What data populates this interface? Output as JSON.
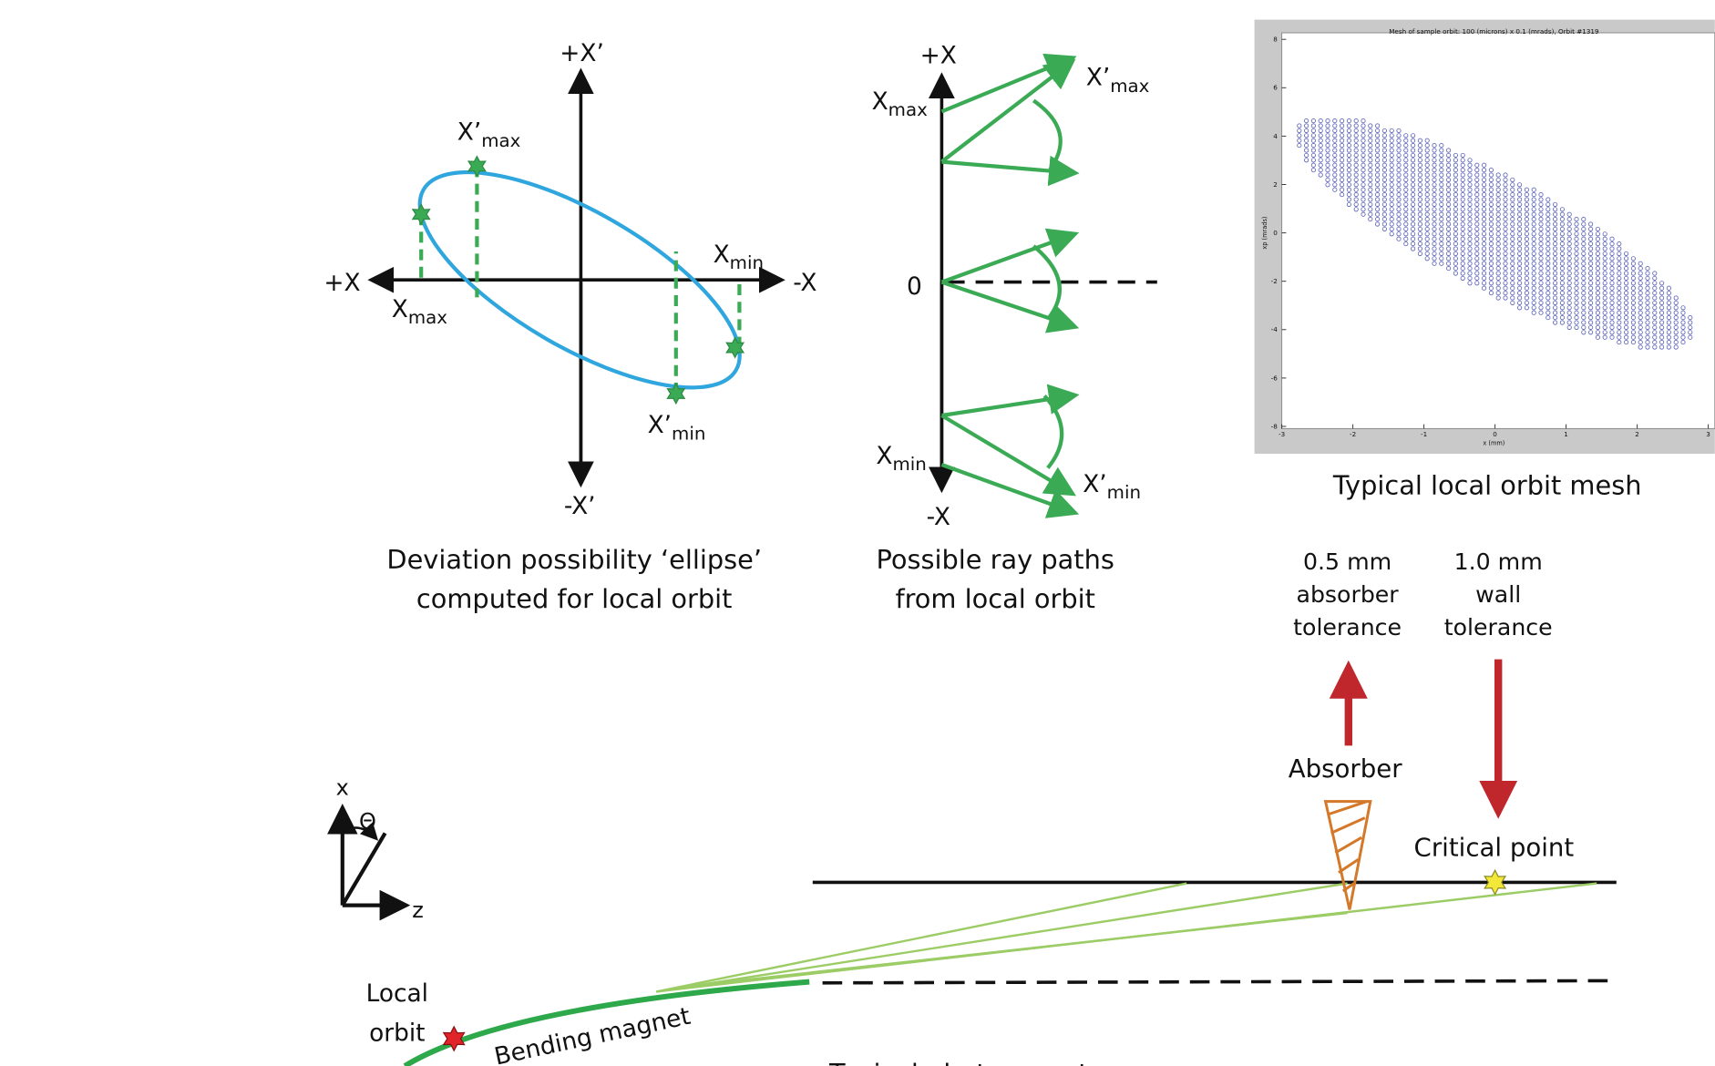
{
  "ellipse_panel": {
    "axis_labels": {
      "plus_x": "+X",
      "minus_x": "-X",
      "plus_xp": "+X’",
      "minus_xp": "-X’"
    },
    "points": [
      {
        "base": "X’",
        "sub": "max"
      },
      {
        "base": "X",
        "sub": "max"
      },
      {
        "base": "X",
        "sub": "min"
      },
      {
        "base": "X’",
        "sub": "min"
      }
    ],
    "caption": [
      "Deviation possibility ‘ellipse’",
      "computed for local orbit"
    ]
  },
  "ray_panel": {
    "axis_labels": {
      "plus_x": "+X",
      "zero": "0",
      "minus_x": "-X"
    },
    "labels": [
      {
        "base": "X",
        "sub": "max"
      },
      {
        "base": "X",
        "sub": "min"
      },
      {
        "base": "X’",
        "sub": "max"
      },
      {
        "base": "X’",
        "sub": "min"
      }
    ],
    "caption": [
      "Possible ray paths",
      "from local orbit"
    ]
  },
  "mesh_panel": {
    "title": "Mesh of sample orbit: 100 (microns) x 0.1 (mrads),  Orbit #1319",
    "x_label": "x (mm)",
    "y_label": "xp (mrads)",
    "xticks": [
      -3,
      -2,
      -1,
      0,
      1,
      2,
      3
    ],
    "yticks": [
      -8,
      -6,
      -4,
      -2,
      0,
      2,
      4,
      6,
      8
    ],
    "caption": "Typical local orbit mesh"
  },
  "tolerances": [
    {
      "lines": [
        "0.5 mm",
        "absorber",
        "tolerance"
      ]
    },
    {
      "lines": [
        "1.0 mm",
        "wall",
        "tolerance"
      ]
    }
  ],
  "trace_panel": {
    "absorber": "Absorber",
    "critical_point": "Critical point",
    "axes": {
      "x": "x",
      "z": "z",
      "theta": "Θ"
    },
    "local_orbit": [
      "Local",
      "orbit"
    ],
    "bending_magnet": "Bending magnet",
    "caption": "Typical photon ray trace"
  }
}
